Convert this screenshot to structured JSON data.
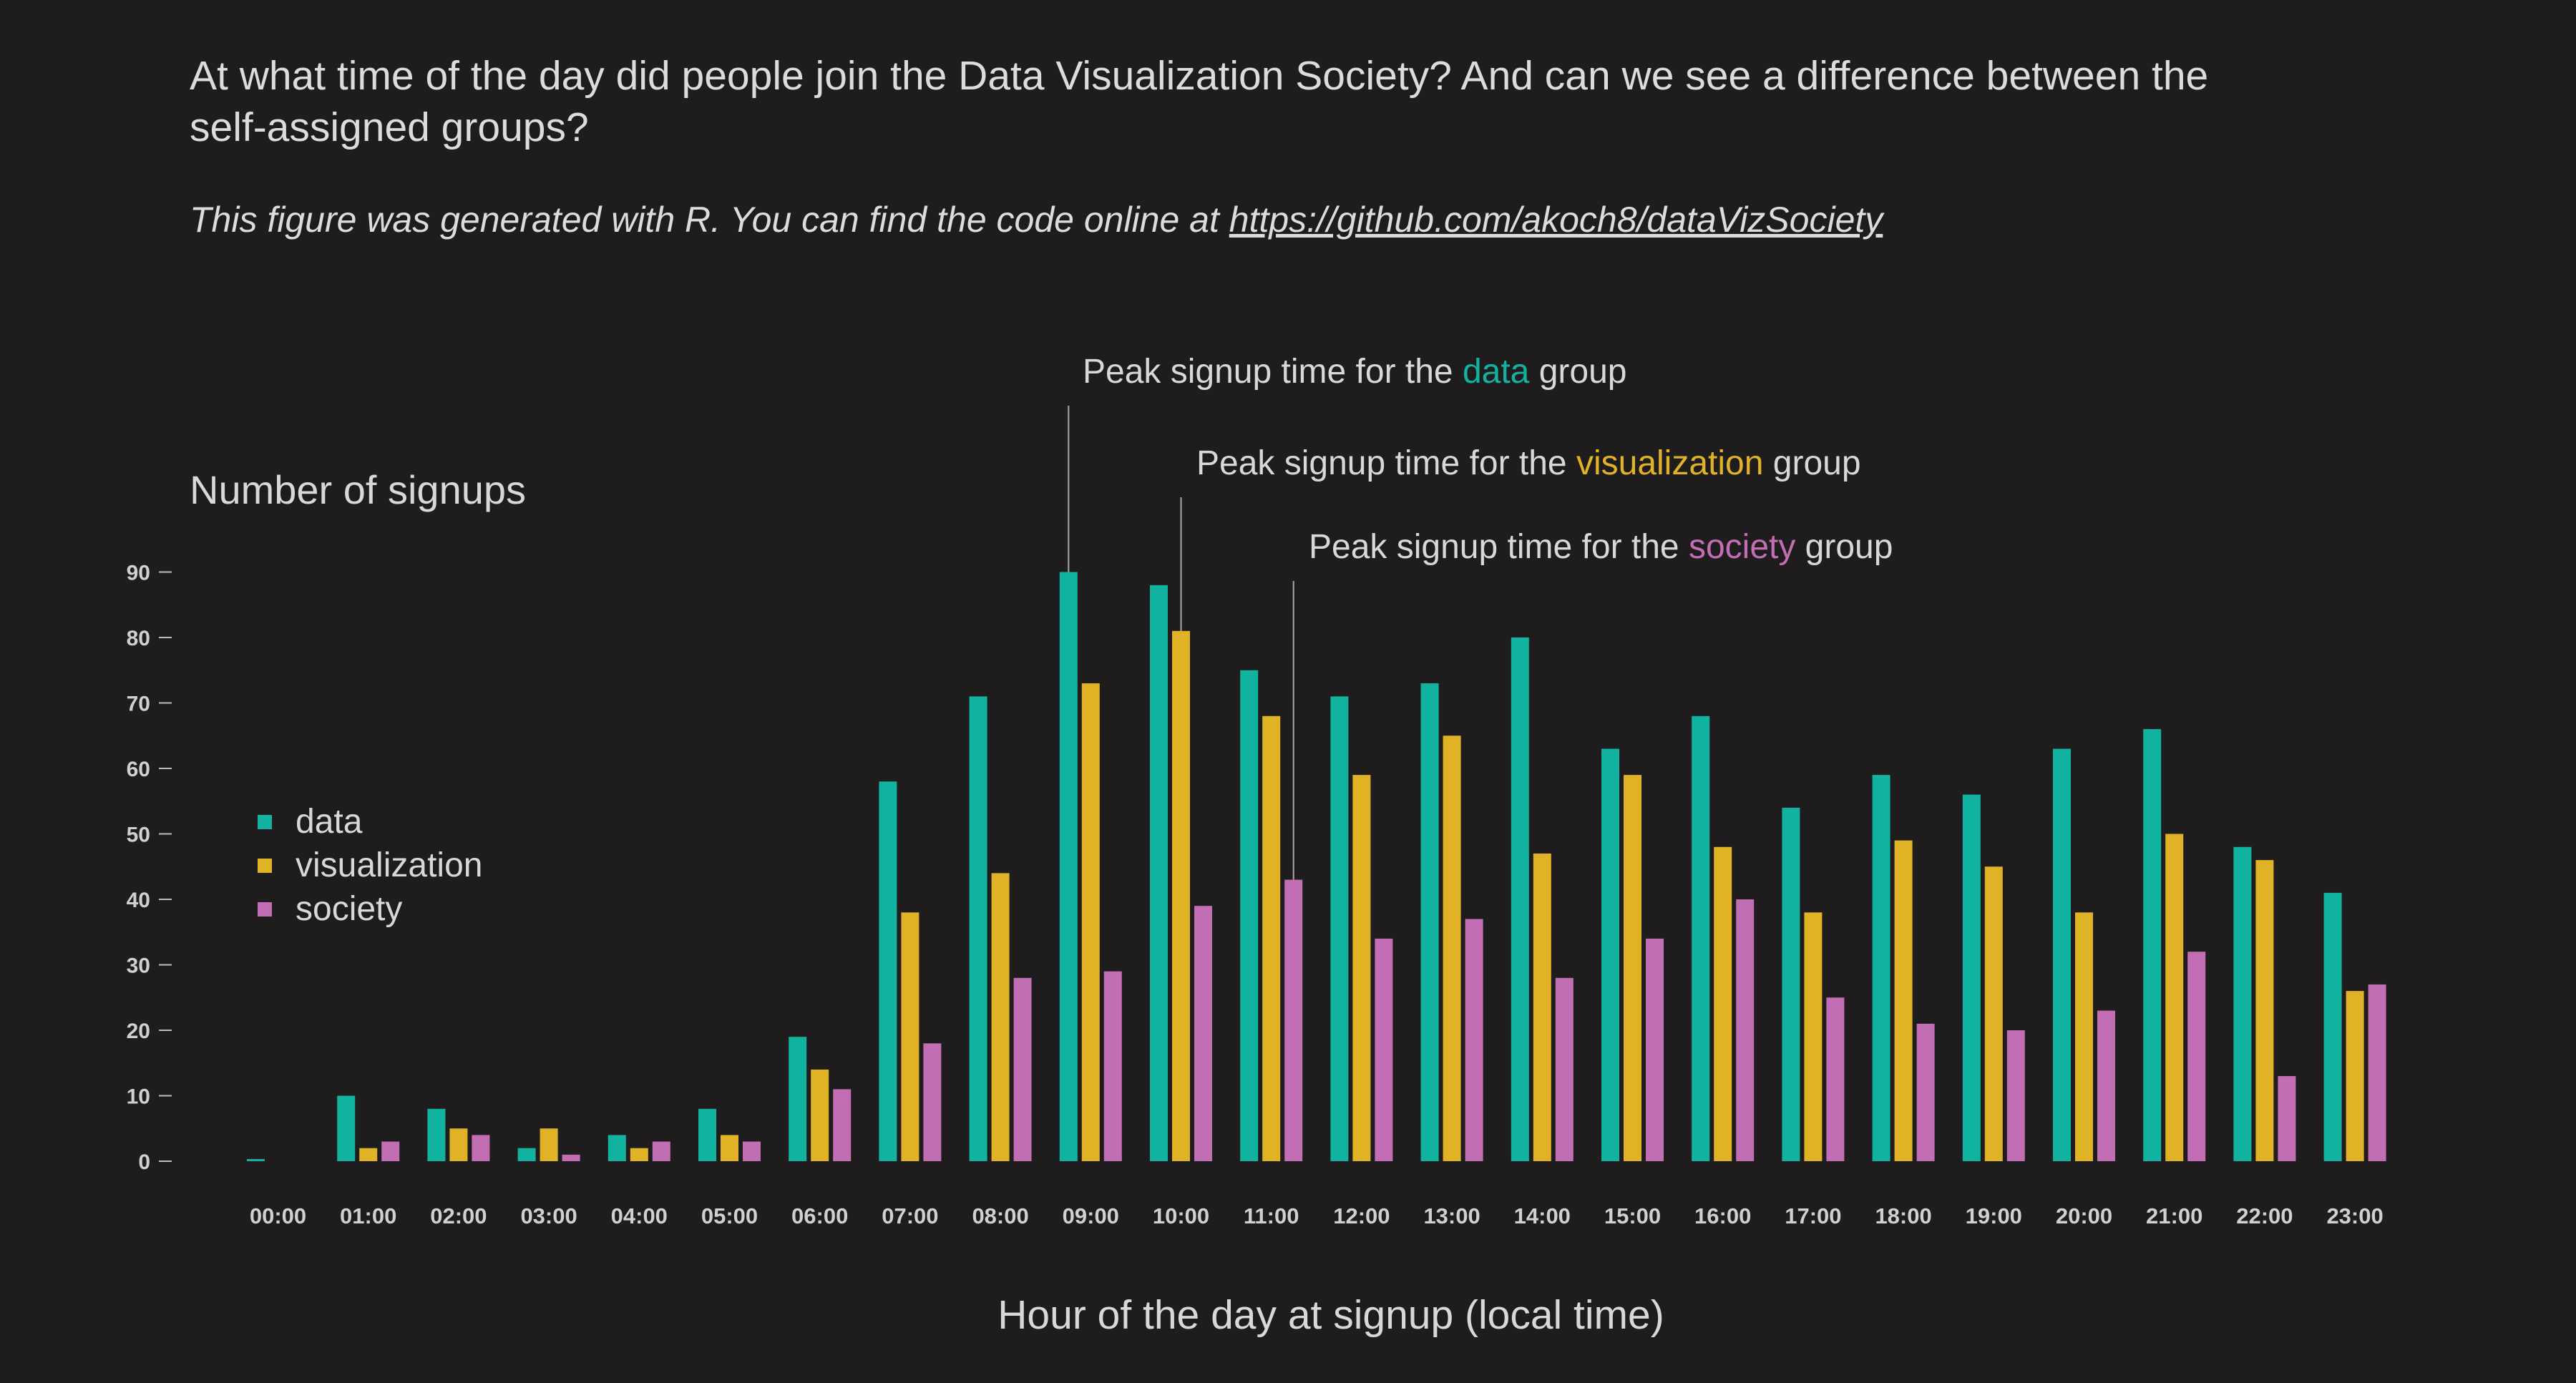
{
  "title": "At what time of the day did people join the Data Visualization Society? And can we see a difference between the self-assigned groups?",
  "caption": {
    "text": "This figure was generated with R. You can find the code online at ",
    "link": "https://github.com/akoch8/dataVizSociety"
  },
  "colors": {
    "background": "#1e1c1c",
    "data": "#11b3a0",
    "visualization": "#e0b326",
    "society": "#c26eb5",
    "text": "#d8d8d8"
  },
  "chart_data": {
    "type": "bar",
    "ylabel": "Number of signups",
    "xlabel": "Hour of the day at signup (local time)",
    "ylim": [
      0,
      90
    ],
    "yticks": [
      0,
      10,
      20,
      30,
      40,
      50,
      60,
      70,
      80,
      90
    ],
    "grid": false,
    "legend_position": "left-middle",
    "categories": [
      "00:00",
      "01:00",
      "02:00",
      "03:00",
      "04:00",
      "05:00",
      "06:00",
      "07:00",
      "08:00",
      "09:00",
      "10:00",
      "11:00",
      "12:00",
      "13:00",
      "14:00",
      "15:00",
      "16:00",
      "17:00",
      "18:00",
      "19:00",
      "20:00",
      "21:00",
      "22:00",
      "23:00"
    ],
    "series": [
      {
        "name": "data",
        "values": [
          0,
          10,
          8,
          2,
          4,
          8,
          19,
          58,
          71,
          90,
          88,
          75,
          71,
          73,
          80,
          63,
          68,
          54,
          59,
          56,
          63,
          66,
          48,
          41
        ]
      },
      {
        "name": "visualization",
        "values": [
          0,
          2,
          5,
          5,
          2,
          4,
          14,
          38,
          44,
          73,
          81,
          68,
          59,
          65,
          47,
          59,
          48,
          38,
          49,
          45,
          38,
          50,
          46,
          26
        ]
      },
      {
        "name": "society",
        "values": [
          0,
          3,
          4,
          1,
          3,
          3,
          11,
          18,
          28,
          29,
          39,
          43,
          34,
          37,
          28,
          34,
          40,
          25,
          21,
          20,
          23,
          32,
          13,
          27
        ]
      }
    ],
    "annotations": [
      {
        "prefix": "Peak signup time for the ",
        "highlight": "data",
        "suffix": " group",
        "series": "data",
        "category": "09:00"
      },
      {
        "prefix": "Peak signup time for the ",
        "highlight": "visualization",
        "suffix": " group",
        "series": "visualization",
        "category": "10:00"
      },
      {
        "prefix": "Peak signup time for the ",
        "highlight": "society",
        "suffix": " group",
        "series": "society",
        "category": "11:00"
      }
    ]
  }
}
